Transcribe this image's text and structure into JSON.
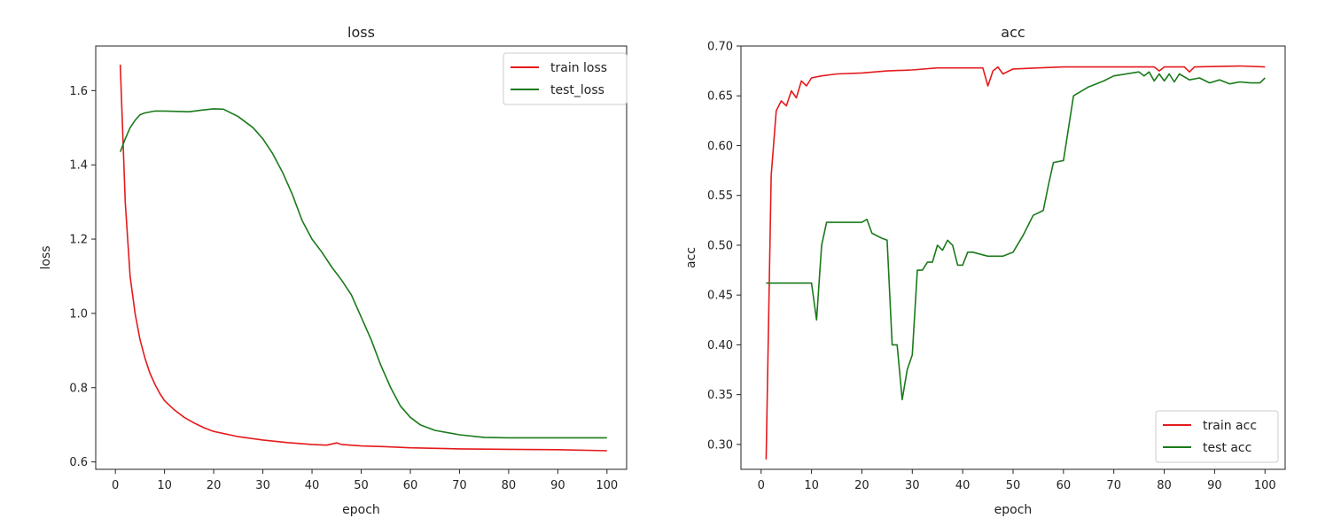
{
  "chart_data": [
    {
      "type": "line",
      "title": "loss",
      "xlabel": "epoch",
      "ylabel": "loss",
      "xlim": [
        -4,
        104
      ],
      "ylim": [
        0.58,
        1.72
      ],
      "xticks": [
        0,
        10,
        20,
        30,
        40,
        50,
        60,
        70,
        80,
        90,
        100
      ],
      "yticks": [
        0.6,
        0.8,
        1.0,
        1.2,
        1.4,
        1.6
      ],
      "ytick_decimals": 1,
      "grid": false,
      "legend_position": "top-right",
      "series": [
        {
          "name": "train loss",
          "color": "#e41a1c",
          "points": [
            [
              1,
              1.67
            ],
            [
              2,
              1.3
            ],
            [
              3,
              1.1
            ],
            [
              4,
              1.0
            ],
            [
              5,
              0.93
            ],
            [
              6,
              0.88
            ],
            [
              7,
              0.84
            ],
            [
              8,
              0.81
            ],
            [
              9,
              0.785
            ],
            [
              10,
              0.765
            ],
            [
              12,
              0.74
            ],
            [
              14,
              0.72
            ],
            [
              16,
              0.705
            ],
            [
              18,
              0.692
            ],
            [
              20,
              0.682
            ],
            [
              25,
              0.668
            ],
            [
              30,
              0.659
            ],
            [
              35,
              0.652
            ],
            [
              40,
              0.647
            ],
            [
              43,
              0.645
            ],
            [
              45,
              0.651
            ],
            [
              46,
              0.647
            ],
            [
              50,
              0.643
            ],
            [
              55,
              0.641
            ],
            [
              60,
              0.638
            ],
            [
              70,
              0.635
            ],
            [
              80,
              0.634
            ],
            [
              90,
              0.633
            ],
            [
              100,
              0.63
            ]
          ]
        },
        {
          "name": "test_loss",
          "color": "#1a7a1a",
          "points": [
            [
              1,
              1.435
            ],
            [
              2,
              1.47
            ],
            [
              3,
              1.5
            ],
            [
              4,
              1.52
            ],
            [
              5,
              1.535
            ],
            [
              6,
              1.54
            ],
            [
              8,
              1.545
            ],
            [
              10,
              1.545
            ],
            [
              15,
              1.543
            ],
            [
              18,
              1.548
            ],
            [
              20,
              1.551
            ],
            [
              22,
              1.55
            ],
            [
              25,
              1.53
            ],
            [
              28,
              1.5
            ],
            [
              30,
              1.47
            ],
            [
              32,
              1.43
            ],
            [
              34,
              1.38
            ],
            [
              36,
              1.32
            ],
            [
              38,
              1.25
            ],
            [
              40,
              1.2
            ],
            [
              42,
              1.165
            ],
            [
              44,
              1.125
            ],
            [
              46,
              1.09
            ],
            [
              48,
              1.05
            ],
            [
              50,
              0.99
            ],
            [
              52,
              0.93
            ],
            [
              54,
              0.86
            ],
            [
              56,
              0.8
            ],
            [
              58,
              0.75
            ],
            [
              60,
              0.72
            ],
            [
              62,
              0.7
            ],
            [
              65,
              0.685
            ],
            [
              70,
              0.673
            ],
            [
              75,
              0.666
            ],
            [
              80,
              0.665
            ],
            [
              90,
              0.665
            ],
            [
              100,
              0.665
            ]
          ]
        }
      ]
    },
    {
      "type": "line",
      "title": "acc",
      "xlabel": "epoch",
      "ylabel": "acc",
      "xlim": [
        -4,
        104
      ],
      "ylim": [
        0.275,
        0.7
      ],
      "xticks": [
        0,
        10,
        20,
        30,
        40,
        50,
        60,
        70,
        80,
        90,
        100
      ],
      "yticks": [
        0.3,
        0.35,
        0.4,
        0.45,
        0.5,
        0.55,
        0.6,
        0.65,
        0.7
      ],
      "ytick_decimals": 2,
      "grid": false,
      "legend_position": "bottom-right",
      "series": [
        {
          "name": "train acc",
          "color": "#e41a1c",
          "points": [
            [
              1,
              0.285
            ],
            [
              2,
              0.57
            ],
            [
              3,
              0.635
            ],
            [
              4,
              0.645
            ],
            [
              5,
              0.64
            ],
            [
              6,
              0.655
            ],
            [
              7,
              0.648
            ],
            [
              8,
              0.665
            ],
            [
              9,
              0.66
            ],
            [
              10,
              0.668
            ],
            [
              12,
              0.67
            ],
            [
              15,
              0.672
            ],
            [
              20,
              0.673
            ],
            [
              25,
              0.675
            ],
            [
              30,
              0.676
            ],
            [
              35,
              0.678
            ],
            [
              40,
              0.678
            ],
            [
              44,
              0.678
            ],
            [
              45,
              0.66
            ],
            [
              46,
              0.675
            ],
            [
              47,
              0.679
            ],
            [
              48,
              0.672
            ],
            [
              50,
              0.677
            ],
            [
              55,
              0.678
            ],
            [
              60,
              0.679
            ],
            [
              70,
              0.679
            ],
            [
              78,
              0.679
            ],
            [
              79,
              0.675
            ],
            [
              80,
              0.679
            ],
            [
              84,
              0.679
            ],
            [
              85,
              0.674
            ],
            [
              86,
              0.679
            ],
            [
              95,
              0.68
            ],
            [
              100,
              0.679
            ]
          ]
        },
        {
          "name": "test acc",
          "color": "#1a7a1a",
          "points": [
            [
              1,
              0.462
            ],
            [
              10,
              0.462
            ],
            [
              11,
              0.425
            ],
            [
              12,
              0.5
            ],
            [
              13,
              0.523
            ],
            [
              20,
              0.523
            ],
            [
              21,
              0.526
            ],
            [
              22,
              0.512
            ],
            [
              24,
              0.507
            ],
            [
              25,
              0.505
            ],
            [
              26,
              0.4
            ],
            [
              27,
              0.4
            ],
            [
              28,
              0.345
            ],
            [
              29,
              0.375
            ],
            [
              30,
              0.39
            ],
            [
              31,
              0.475
            ],
            [
              32,
              0.475
            ],
            [
              33,
              0.483
            ],
            [
              34,
              0.483
            ],
            [
              35,
              0.5
            ],
            [
              36,
              0.495
            ],
            [
              37,
              0.505
            ],
            [
              38,
              0.5
            ],
            [
              39,
              0.48
            ],
            [
              40,
              0.48
            ],
            [
              41,
              0.493
            ],
            [
              42,
              0.493
            ],
            [
              45,
              0.489
            ],
            [
              48,
              0.489
            ],
            [
              50,
              0.493
            ],
            [
              52,
              0.51
            ],
            [
              54,
              0.53
            ],
            [
              56,
              0.535
            ],
            [
              57,
              0.56
            ],
            [
              58,
              0.583
            ],
            [
              60,
              0.585
            ],
            [
              62,
              0.65
            ],
            [
              65,
              0.659
            ],
            [
              68,
              0.665
            ],
            [
              70,
              0.67
            ],
            [
              75,
              0.674
            ],
            [
              76,
              0.67
            ],
            [
              77,
              0.674
            ],
            [
              78,
              0.665
            ],
            [
              79,
              0.672
            ],
            [
              80,
              0.665
            ],
            [
              81,
              0.672
            ],
            [
              82,
              0.664
            ],
            [
              83,
              0.672
            ],
            [
              85,
              0.666
            ],
            [
              87,
              0.668
            ],
            [
              89,
              0.663
            ],
            [
              91,
              0.666
            ],
            [
              93,
              0.662
            ],
            [
              95,
              0.664
            ],
            [
              97,
              0.663
            ],
            [
              99,
              0.663
            ],
            [
              100,
              0.668
            ]
          ]
        }
      ]
    }
  ]
}
